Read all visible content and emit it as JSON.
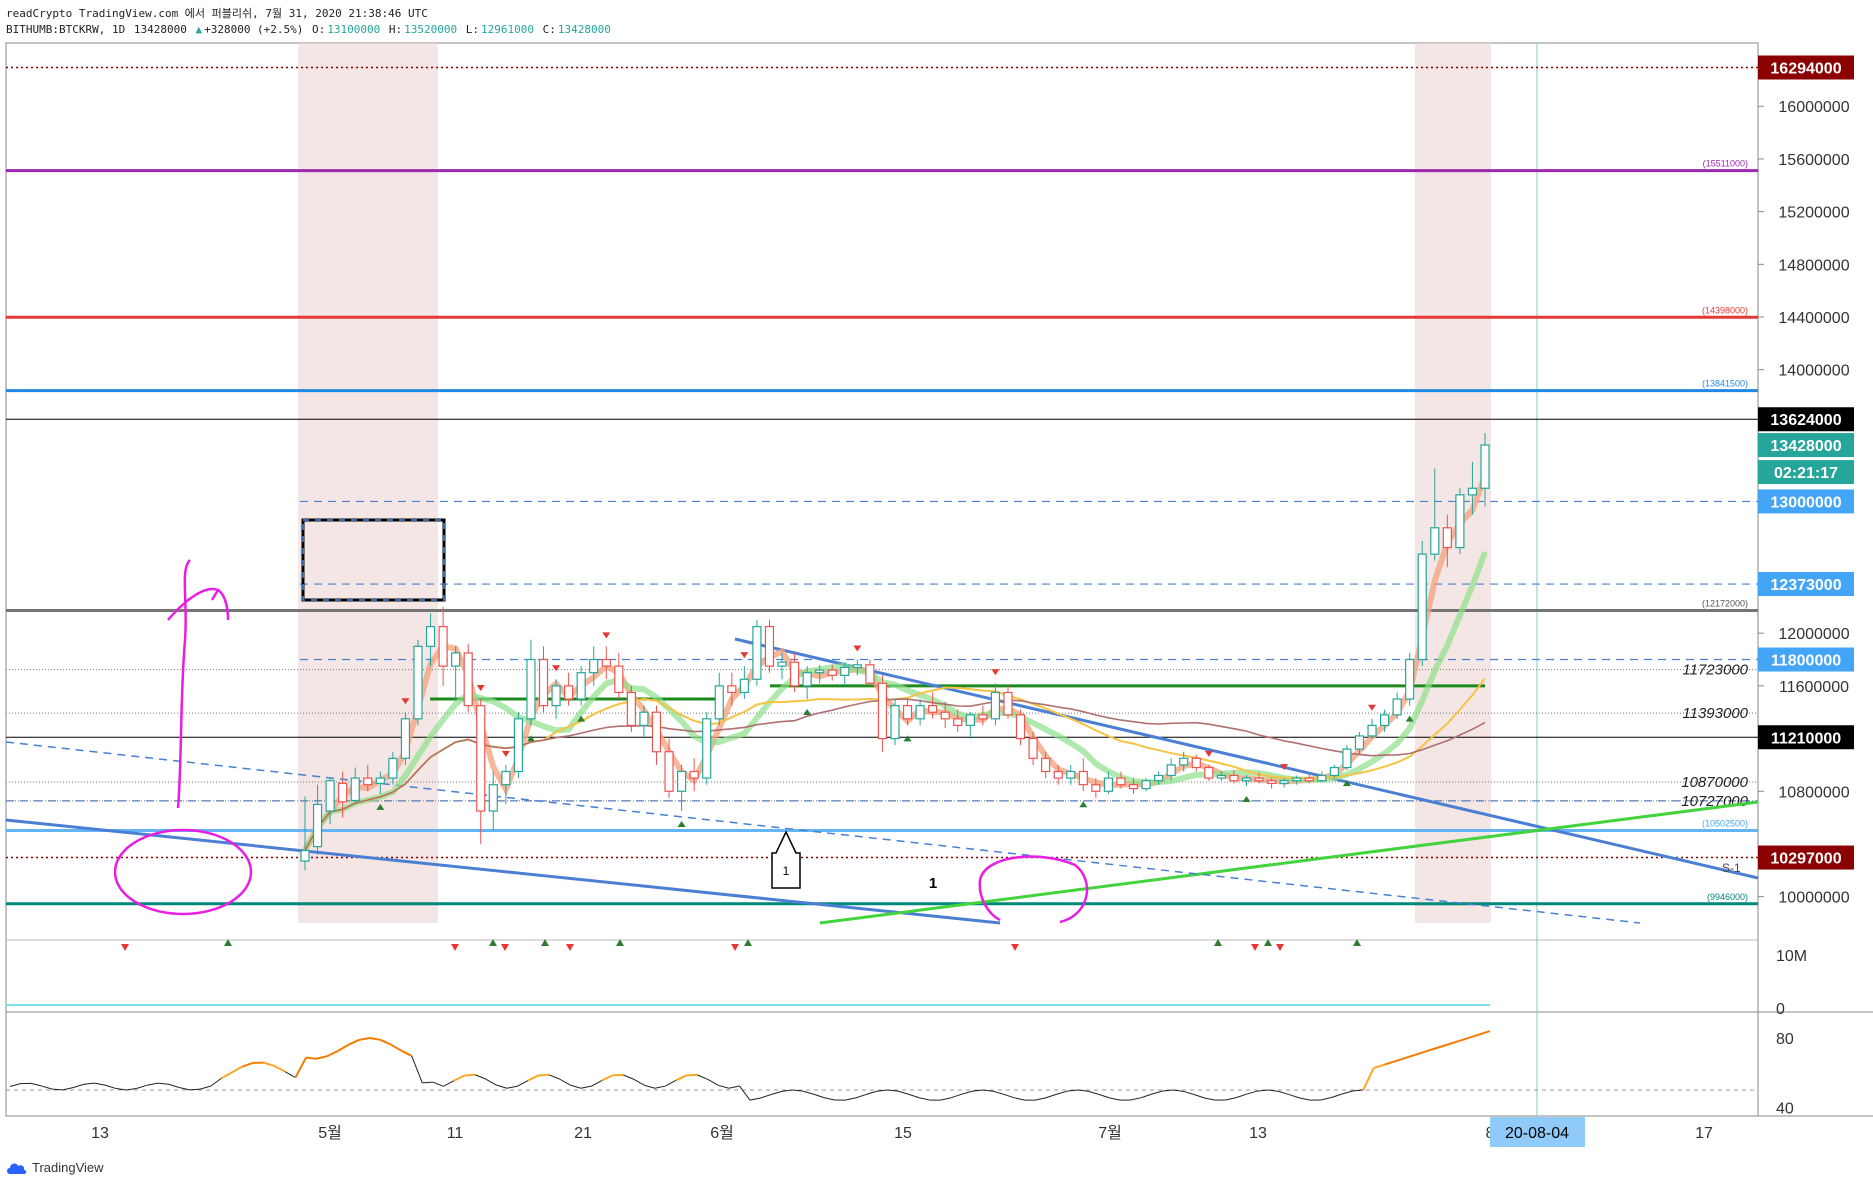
{
  "header": {
    "publish_line": "readCrypto TradingView.com 에서 퍼블리쉬, 7월 31, 2020 21:38:46 UTC",
    "symbol": "BITHUMB:BTCKRW, 1D",
    "last": "13428000",
    "change": "+328000 (+2.5%)",
    "open_label": "O:",
    "open": "13100000",
    "high_label": "H:",
    "high": "13520000",
    "low_label": "L:",
    "low": "12961000",
    "close_label": "C:",
    "close": "13428000"
  },
  "footer": {
    "brand": "TradingView"
  },
  "colors": {
    "up": "#26a69a",
    "down": "#ef5350",
    "accent": "#1e88e5"
  },
  "chart_data": {
    "type": "candlestick",
    "price_axis": {
      "range": [
        9800000,
        16480000
      ],
      "ticks": [
        "16000000",
        "15600000",
        "15200000",
        "14800000",
        "14400000",
        "14000000",
        "12000000",
        "11600000",
        "10800000",
        "10000000"
      ]
    },
    "price_badges": [
      {
        "value": "16294000",
        "bg": "#8b0000",
        "fg": "#ffffff"
      },
      {
        "value": "13624000",
        "bg": "#000000",
        "fg": "#ffffff"
      },
      {
        "value": "13428000",
        "bg": "#26a69a",
        "fg": "#ffffff"
      },
      {
        "value": "02:21:17",
        "bg": "#26a69a",
        "fg": "#ffffff",
        "offset": 27
      },
      {
        "value": "13000000",
        "bg": "#42a5f5",
        "fg": "#ffffff"
      },
      {
        "value": "12373000",
        "bg": "#42a5f5",
        "fg": "#ffffff"
      },
      {
        "value": "11800000",
        "bg": "#42a5f5",
        "fg": "#ffffff"
      },
      {
        "value": "11210000",
        "bg": "#000000",
        "fg": "#ffffff"
      },
      {
        "value": "10297000",
        "bg": "#8b0000",
        "fg": "#ffffff"
      }
    ],
    "level_labels": [
      {
        "value": 15511000,
        "text": "(15511000)",
        "color": "#9c27b0"
      },
      {
        "value": 14398000,
        "text": "(14398000)",
        "color": "#e53935"
      },
      {
        "value": 13841500,
        "text": "(13841500)",
        "color": "#1e88e5"
      },
      {
        "value": 12172000,
        "text": "(12172000)",
        "color": "#555555"
      },
      {
        "value": 10502500,
        "text": "(10502500)",
        "color": "#42a5f5"
      },
      {
        "value": 9946000,
        "text": "(9946000)",
        "color": "#00897b"
      }
    ],
    "italic_labels": [
      {
        "value": 11723000,
        "text": "11723000"
      },
      {
        "value": 11393000,
        "text": "11393000"
      },
      {
        "value": 10870000,
        "text": "10870000"
      },
      {
        "value": 10727000,
        "text": "10727000"
      }
    ],
    "x_labels": [
      "13",
      "5월",
      "11",
      "21",
      "6월",
      "15",
      "7월",
      "13",
      "8",
      "17"
    ],
    "x_badge": "20-08-04",
    "volume_axis": [
      "10M",
      "0"
    ],
    "rsi_axis": [
      "80",
      "40"
    ],
    "annotations": [
      "1",
      "1",
      "S-1"
    ],
    "candles": [
      [
        10270000,
        10760000,
        10200000,
        10350000
      ],
      [
        10380000,
        10850000,
        10320000,
        10700000
      ],
      [
        10650000,
        10900000,
        10550000,
        10880000
      ],
      [
        10860000,
        10950000,
        10600000,
        10720000
      ],
      [
        10730000,
        10980000,
        10700000,
        10900000
      ],
      [
        10900000,
        11000000,
        10800000,
        10850000
      ],
      [
        10860000,
        10950000,
        10780000,
        10900000
      ],
      [
        10900000,
        11100000,
        10850000,
        11050000
      ],
      [
        11050000,
        11400000,
        11000000,
        11350000
      ],
      [
        11350000,
        11950000,
        11300000,
        11900000
      ],
      [
        11900000,
        12150000,
        11750000,
        12050000
      ],
      [
        12050000,
        12200000,
        11600000,
        11750000
      ],
      [
        11750000,
        11900000,
        11500000,
        11850000
      ],
      [
        11850000,
        11920000,
        11400000,
        11450000
      ],
      [
        11450000,
        11500000,
        10400000,
        10650000
      ],
      [
        10650000,
        10950000,
        10500000,
        10850000
      ],
      [
        10850000,
        11000000,
        10700000,
        10950000
      ],
      [
        10950000,
        11400000,
        10900000,
        11350000
      ],
      [
        11350000,
        11950000,
        11300000,
        11800000
      ],
      [
        11800000,
        11900000,
        11400000,
        11450000
      ],
      [
        11450000,
        11650000,
        11350000,
        11600000
      ],
      [
        11600000,
        11700000,
        11450000,
        11500000
      ],
      [
        11500000,
        11750000,
        11450000,
        11700000
      ],
      [
        11700000,
        11900000,
        11600000,
        11800000
      ],
      [
        11800000,
        11900000,
        11650000,
        11750000
      ],
      [
        11750000,
        11850000,
        11500000,
        11550000
      ],
      [
        11550000,
        11600000,
        11250000,
        11300000
      ],
      [
        11300000,
        11450000,
        11200000,
        11400000
      ],
      [
        11400000,
        11450000,
        11000000,
        11100000
      ],
      [
        11100000,
        11200000,
        10750000,
        10800000
      ],
      [
        10800000,
        11000000,
        10650000,
        10950000
      ],
      [
        10950000,
        11050000,
        10800000,
        10900000
      ],
      [
        10900000,
        11400000,
        10850000,
        11350000
      ],
      [
        11350000,
        11700000,
        11300000,
        11600000
      ],
      [
        11600000,
        11700000,
        11450000,
        11550000
      ],
      [
        11550000,
        11750000,
        11500000,
        11650000
      ],
      [
        11650000,
        12100000,
        11600000,
        12050000
      ],
      [
        12050000,
        12100000,
        11700000,
        11750000
      ],
      [
        11750000,
        11850000,
        11650000,
        11780000
      ],
      [
        11780000,
        11850000,
        11550000,
        11600000
      ],
      [
        11600000,
        11750000,
        11500000,
        11700000
      ],
      [
        11700000,
        11760000,
        11620000,
        11720000
      ],
      [
        11720000,
        11760000,
        11640000,
        11680000
      ],
      [
        11680000,
        11780000,
        11600000,
        11740000
      ],
      [
        11740000,
        11800000,
        11680000,
        11760000
      ],
      [
        11760000,
        11800000,
        11600000,
        11620000
      ],
      [
        11620000,
        11680000,
        11100000,
        11200000
      ],
      [
        11200000,
        11500000,
        11150000,
        11450000
      ],
      [
        11450000,
        11500000,
        11300000,
        11350000
      ],
      [
        11350000,
        11500000,
        11300000,
        11450000
      ],
      [
        11450000,
        11550000,
        11350000,
        11400000
      ],
      [
        11400000,
        11480000,
        11280000,
        11350000
      ],
      [
        11350000,
        11420000,
        11250000,
        11300000
      ],
      [
        11300000,
        11400000,
        11200000,
        11380000
      ],
      [
        11380000,
        11450000,
        11300000,
        11350000
      ],
      [
        11350000,
        11620000,
        11300000,
        11550000
      ],
      [
        11550000,
        11600000,
        11350000,
        11380000
      ],
      [
        11380000,
        11420000,
        11150000,
        11200000
      ],
      [
        11200000,
        11250000,
        11000000,
        11050000
      ],
      [
        11050000,
        11100000,
        10900000,
        10950000
      ],
      [
        10950000,
        11000000,
        10850000,
        10900000
      ],
      [
        10900000,
        11000000,
        10850000,
        10950000
      ],
      [
        10950000,
        11050000,
        10800000,
        10850000
      ],
      [
        10850000,
        10900000,
        10750000,
        10800000
      ],
      [
        10800000,
        10950000,
        10780000,
        10900000
      ],
      [
        10900000,
        10950000,
        10820000,
        10850000
      ],
      [
        10850000,
        10900000,
        10780000,
        10820000
      ],
      [
        10820000,
        10900000,
        10800000,
        10880000
      ],
      [
        10880000,
        10950000,
        10850000,
        10920000
      ],
      [
        10920000,
        11050000,
        10880000,
        11000000
      ],
      [
        11000000,
        11100000,
        10950000,
        11050000
      ],
      [
        11050000,
        11080000,
        10950000,
        10980000
      ],
      [
        10980000,
        11000000,
        10880000,
        10900000
      ],
      [
        10900000,
        10950000,
        10880000,
        10920000
      ],
      [
        10920000,
        10960000,
        10860000,
        10880000
      ],
      [
        10880000,
        10920000,
        10840000,
        10900000
      ],
      [
        10900000,
        10940000,
        10860000,
        10880000
      ],
      [
        10880000,
        10900000,
        10820000,
        10860000
      ],
      [
        10860000,
        10900000,
        10830000,
        10880000
      ],
      [
        10880000,
        10920000,
        10850000,
        10900000
      ],
      [
        10900000,
        10930000,
        10860000,
        10880000
      ],
      [
        10880000,
        10950000,
        10870000,
        10920000
      ],
      [
        10920000,
        11000000,
        10900000,
        10980000
      ],
      [
        10980000,
        11150000,
        10960000,
        11120000
      ],
      [
        11120000,
        11250000,
        11080000,
        11220000
      ],
      [
        11220000,
        11350000,
        11200000,
        11300000
      ],
      [
        11300000,
        11420000,
        11250000,
        11380000
      ],
      [
        11380000,
        11550000,
        11350000,
        11500000
      ],
      [
        11500000,
        11850000,
        11450000,
        11800000
      ],
      [
        11800000,
        12700000,
        11750000,
        12600000
      ],
      [
        12600000,
        13250000,
        12550000,
        12800000
      ],
      [
        12800000,
        12900000,
        12500000,
        12650000
      ],
      [
        12650000,
        13100000,
        12600000,
        13050000
      ],
      [
        13050000,
        13300000,
        12900000,
        13100000
      ],
      [
        13100000,
        13520000,
        12961000,
        13428000
      ]
    ]
  }
}
